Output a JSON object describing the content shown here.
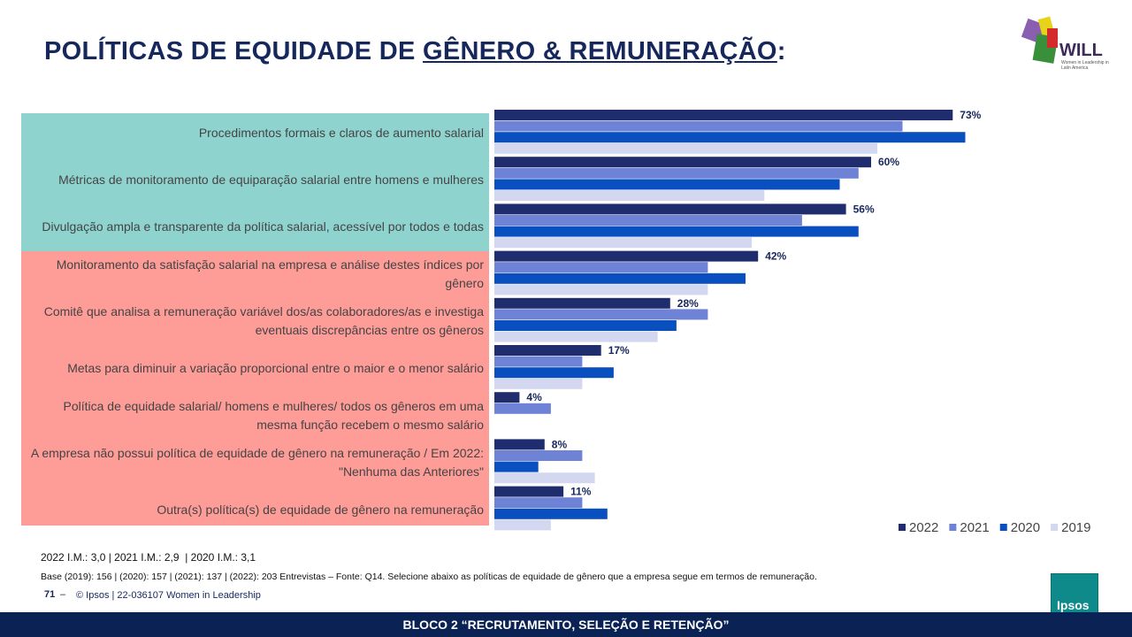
{
  "header": {
    "title_parts": [
      "POLÍTICAS DE EQUIDADE DE ",
      "GÊNERO & REMUNERAÇÃO",
      ":"
    ],
    "logo_text": "WILL",
    "logo_subtext": "Women in Leadership in Latin America"
  },
  "chart_data": {
    "type": "bar",
    "orientation": "horizontal",
    "categories": [
      "Procedimentos formais e claros de aumento salarial",
      "Métricas de monitoramento de equiparação salarial entre homens e mulheres",
      "Divulgação ampla e transparente da política salarial, acessível por todos e todas",
      "Monitoramento da satisfação salarial na empresa e análise destes índices por gênero",
      "Comitê que analisa a remuneração variável dos/as colaboradores/as e investiga eventuais discrepâncias entre os gêneros",
      "Metas para diminuir a variação proporcional entre o maior e o menor salário",
      "Política de equidade salarial/ homens e mulheres/ todos os gêneros em uma mesma função recebem o mesmo salário",
      "A empresa não possui política de equidade de gênero na remuneração / Em 2022: \"Nenhuma das Anteriores\"",
      "Outra(s) política(s) de equidade de gênero na remuneração"
    ],
    "series": [
      {
        "name": "2022",
        "color": "#1f2d6e",
        "values": [
          73,
          60,
          56,
          42,
          28,
          17,
          4,
          8,
          11
        ],
        "value_labels": [
          "73%",
          "60%",
          "56%",
          "42%",
          "28%",
          "17%",
          "4%",
          "8%",
          "11%"
        ]
      },
      {
        "name": "2021",
        "color": "#6f83d6",
        "values": [
          65,
          58,
          49,
          34,
          34,
          14,
          9,
          14,
          14
        ]
      },
      {
        "name": "2020",
        "color": "#0a4fc0",
        "values": [
          75,
          55,
          58,
          40,
          29,
          19,
          null,
          7,
          18
        ]
      },
      {
        "name": "2019",
        "color": "#d3d8f0",
        "values": [
          61,
          43,
          41,
          34,
          26,
          14,
          null,
          16,
          9
        ]
      }
    ],
    "xlim": [
      0,
      100
    ],
    "legend": "bottom-right"
  },
  "footer": {
    "im_note": "2022 I.M.: 3,0 | 2021 I.M.: 2,9  | 2020 I.M.: 3,1",
    "base_note": "Base (2019): 156 | (2020): 157 | (2021): 137 | (2022): 203 Entrevistas – Fonte: Q14. Selecione abaixo as políticas de equidade de gênero que a empresa segue em termos de remuneração.",
    "page": "71",
    "copyright": "© Ipsos | 22-036107 Women in Leadership",
    "bar_text": "BLOCO 2 “RECRUTAMENTO,  SELEÇÃO  E RETENÇÃO”",
    "brand": "Ipsos"
  }
}
